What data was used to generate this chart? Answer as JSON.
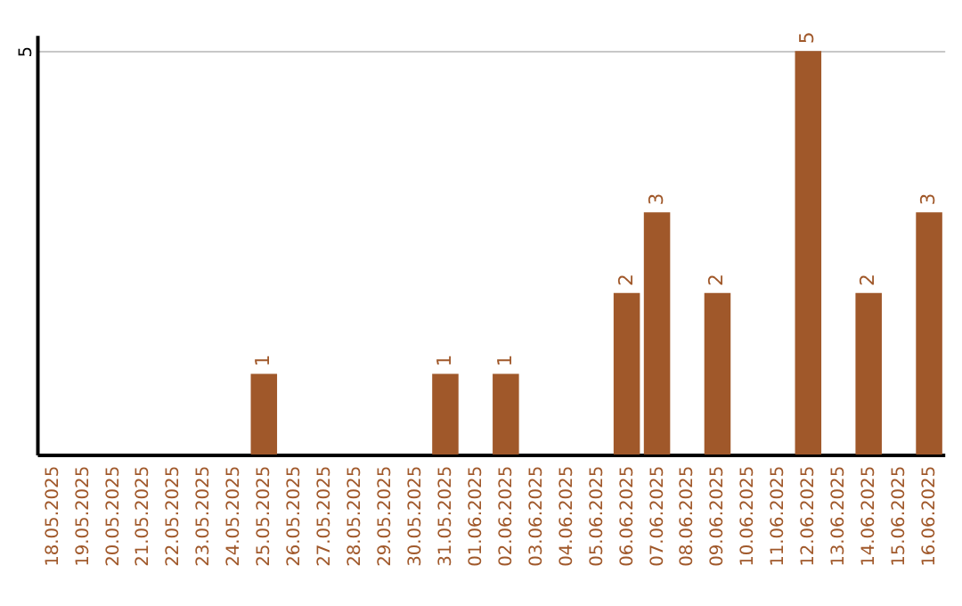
{
  "chart_data": {
    "type": "bar",
    "categories": [
      "18.05.2025",
      "19.05.2025",
      "20.05.2025",
      "21.05.2025",
      "22.05.2025",
      "23.05.2025",
      "24.05.2025",
      "25.05.2025",
      "26.05.2025",
      "27.05.2025",
      "28.05.2025",
      "29.05.2025",
      "30.05.2025",
      "31.05.2025",
      "01.06.2025",
      "02.06.2025",
      "03.06.2025",
      "04.06.2025",
      "05.06.2025",
      "06.06.2025",
      "07.06.2025",
      "08.06.2025",
      "09.06.2025",
      "10.06.2025",
      "11.06.2025",
      "12.06.2025",
      "13.06.2025",
      "14.06.2025",
      "15.06.2025",
      "16.06.2025"
    ],
    "values": [
      null,
      null,
      null,
      null,
      null,
      null,
      null,
      1,
      null,
      null,
      null,
      null,
      null,
      1,
      null,
      1,
      null,
      null,
      null,
      2,
      3,
      null,
      2,
      null,
      null,
      5,
      null,
      2,
      null,
      3
    ],
    "color": "#a0582a",
    "ylim": [
      0,
      5.2
    ],
    "yticks": [
      5
    ],
    "grid": "y",
    "data_labels": true
  }
}
